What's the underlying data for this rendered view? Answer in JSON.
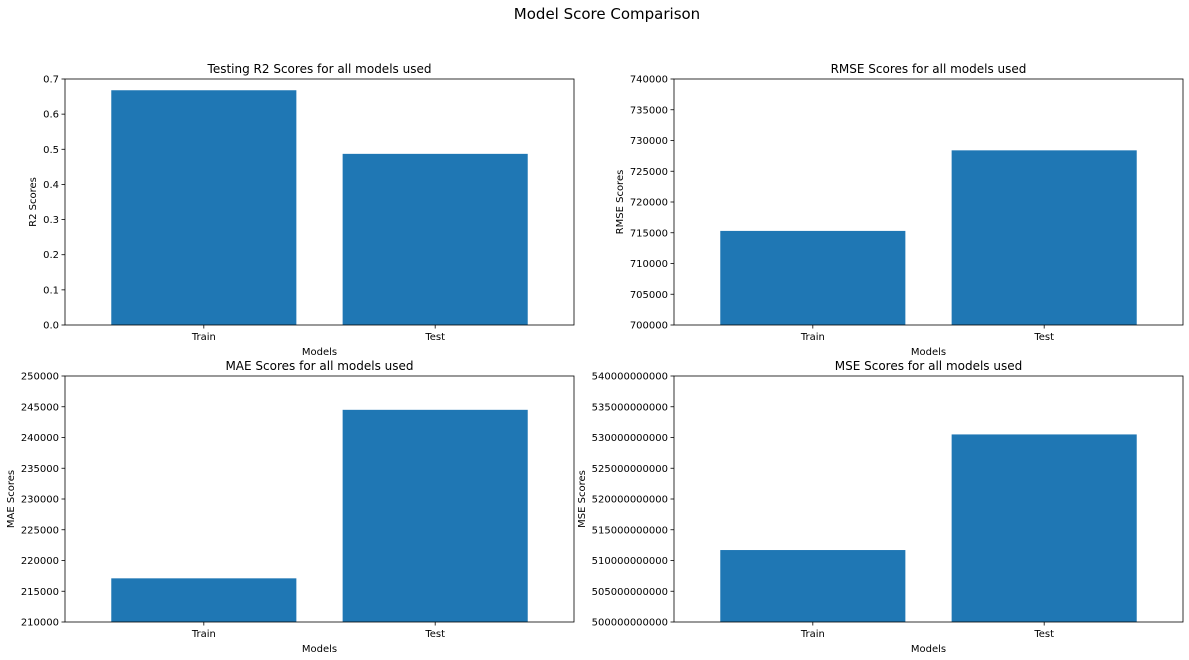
{
  "figure": {
    "title": "Model Score Comparison",
    "colors": {
      "bar": "#1f77b4",
      "axis": "#000000",
      "background": "#ffffff"
    }
  },
  "chart_data": [
    {
      "type": "bar",
      "title": "Testing R2 Scores for all models used",
      "xlabel": "Models",
      "ylabel": "R2 Scores",
      "categories": [
        "Train",
        "Test"
      ],
      "values": [
        0.668,
        0.487
      ],
      "ylim": [
        0,
        0.7
      ],
      "yticks": [
        0.0,
        0.1,
        0.2,
        0.3,
        0.4,
        0.5,
        0.6,
        0.7
      ],
      "ytick_labels": [
        "0.0",
        "0.1",
        "0.2",
        "0.3",
        "0.4",
        "0.5",
        "0.6",
        "0.7"
      ],
      "grid": false
    },
    {
      "type": "bar",
      "title": "RMSE Scores for all models used",
      "xlabel": "Models",
      "ylabel": "RMSE Scores",
      "categories": [
        "Train",
        "Test"
      ],
      "values": [
        715300,
        728400
      ],
      "ylim": [
        700000,
        740000
      ],
      "yticks": [
        700000,
        705000,
        710000,
        715000,
        720000,
        725000,
        730000,
        735000,
        740000
      ],
      "ytick_labels": [
        "700000",
        "705000",
        "710000",
        "715000",
        "720000",
        "725000",
        "730000",
        "735000",
        "740000"
      ],
      "grid": false
    },
    {
      "type": "bar",
      "title": "MAE Scores for all models used",
      "xlabel": "Models",
      "ylabel": "MAE Scores",
      "categories": [
        "Train",
        "Test"
      ],
      "values": [
        217100,
        244500
      ],
      "ylim": [
        210000,
        250000
      ],
      "yticks": [
        210000,
        215000,
        220000,
        225000,
        230000,
        235000,
        240000,
        245000,
        250000
      ],
      "ytick_labels": [
        "210000",
        "215000",
        "220000",
        "225000",
        "230000",
        "235000",
        "240000",
        "245000",
        "250000"
      ],
      "grid": false
    },
    {
      "type": "bar",
      "title": "MSE Scores for all models used",
      "xlabel": "Models",
      "ylabel": "MSE Scores",
      "categories": [
        "Train",
        "Test"
      ],
      "values": [
        511700000000,
        530500000000
      ],
      "ylim": [
        500000000000,
        540000000000
      ],
      "yticks": [
        500000000000,
        505000000000,
        510000000000,
        515000000000,
        520000000000,
        525000000000,
        530000000000,
        535000000000,
        540000000000
      ],
      "ytick_labels": [
        "500000000000",
        "505000000000",
        "510000000000",
        "515000000000",
        "520000000000",
        "525000000000",
        "530000000000",
        "535000000000",
        "540000000000"
      ],
      "grid": false
    }
  ]
}
